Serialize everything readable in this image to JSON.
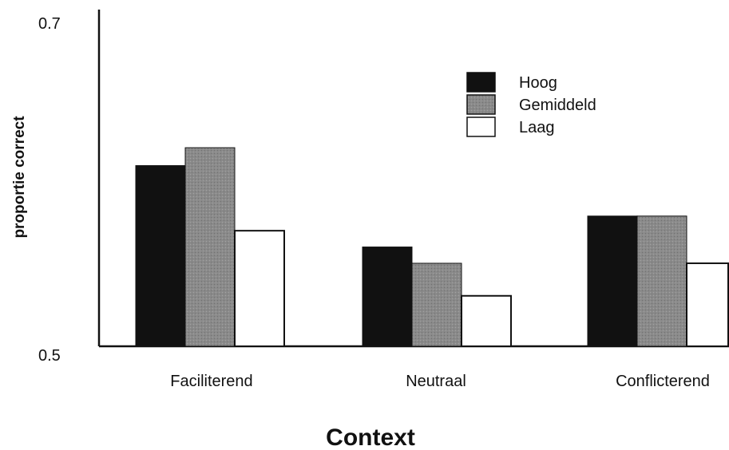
{
  "chart_data": {
    "type": "bar",
    "title": "",
    "xlabel": "Context",
    "ylabel": "proportie correct",
    "ylim": [
      0.5,
      0.7
    ],
    "yticks": [
      {
        "value": 0.5,
        "label": "0.5"
      },
      {
        "value": 0.7,
        "label": "0.7"
      }
    ],
    "categories": [
      "Faciliterend",
      "Neutraal",
      "Conflicterend"
    ],
    "series": [
      {
        "name": "Hoog",
        "color": "#111111",
        "values": [
          0.611,
          0.561,
          0.58
        ]
      },
      {
        "name": "Gemiddeld",
        "color": "#8a8a8a",
        "values": [
          0.622,
          0.551,
          0.58
        ]
      },
      {
        "name": "Laag",
        "color": "#ffffff",
        "values": [
          0.571,
          0.531,
          0.551
        ]
      }
    ],
    "legend_position": "top-right",
    "grid": false
  }
}
